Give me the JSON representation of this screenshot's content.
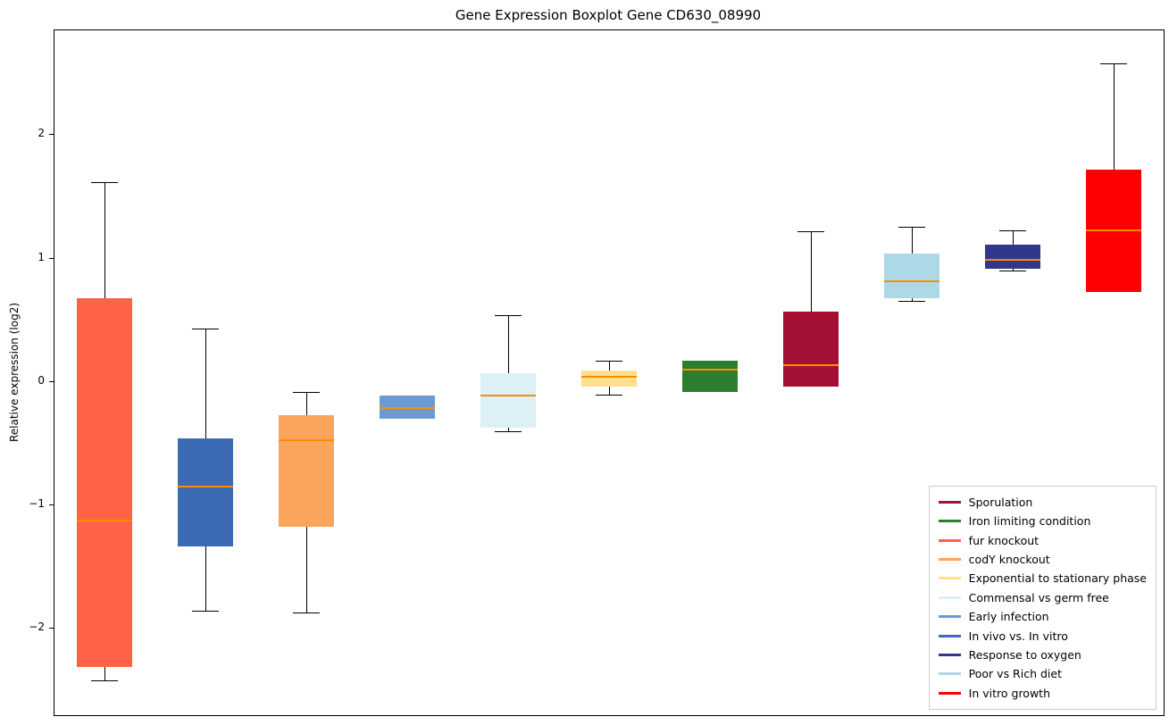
{
  "title": "Gene Expression Boxplot Gene CD630_08990",
  "ylabel": "Relative expression (log2)",
  "chart_data": {
    "type": "boxplot",
    "title": "Gene Expression Boxplot Gene CD630_08990",
    "xlabel": "",
    "ylabel": "Relative expression (log2)",
    "ylim": [
      -2.7,
      2.85
    ],
    "yticks": [
      -2,
      -1,
      0,
      1,
      2
    ],
    "grid": false,
    "median_color": "#FF8C00",
    "whisker_color": "#000000",
    "legend_position": "lower right",
    "boxes": [
      {
        "label": "fur knockout",
        "color": "#FF6347",
        "whislo": -2.42,
        "q1": -2.31,
        "med": -1.12,
        "q3": 0.68,
        "whishi": 1.62
      },
      {
        "label": "In vivo vs. In vitro",
        "color": "#3D6BB3",
        "whislo": -1.85,
        "q1": -1.33,
        "med": -0.85,
        "q3": -0.46,
        "whishi": 0.43
      },
      {
        "label": "codY knockout",
        "color": "#FBA55C",
        "whislo": -1.87,
        "q1": -1.17,
        "med": -0.47,
        "q3": -0.27,
        "whishi": -0.08
      },
      {
        "label": "Early infection",
        "color": "#6C9BD2",
        "whislo": -0.3,
        "q1": -0.3,
        "med": -0.21,
        "q3": -0.11,
        "whishi": -0.11
      },
      {
        "label": "Commensal vs germ free",
        "color": "#DDF0F6",
        "whislo": -0.4,
        "q1": -0.37,
        "med": -0.11,
        "q3": 0.07,
        "whishi": 0.54
      },
      {
        "label": "Exponential to stationary phase",
        "color": "#FFE08F",
        "whislo": -0.1,
        "q1": -0.04,
        "med": 0.04,
        "q3": 0.09,
        "whishi": 0.17
      },
      {
        "label": "Iron limiting condition",
        "color": "#2A7E2E",
        "whislo": -0.08,
        "q1": -0.08,
        "med": 0.1,
        "q3": 0.17,
        "whishi": 0.17
      },
      {
        "label": "Sporulation",
        "color": "#A41034",
        "whislo": -0.04,
        "q1": -0.04,
        "med": 0.14,
        "q3": 0.57,
        "whishi": 1.22
      },
      {
        "label": "Poor vs Rich diet",
        "color": "#ADD8E6",
        "whislo": 0.66,
        "q1": 0.68,
        "med": 0.82,
        "q3": 1.04,
        "whishi": 1.26
      },
      {
        "label": "Response to oxygen",
        "color": "#333789",
        "whislo": 0.9,
        "q1": 0.92,
        "med": 0.99,
        "q3": 1.11,
        "whishi": 1.23
      },
      {
        "label": "In vitro growth",
        "color": "#FE0000",
        "whislo": 0.73,
        "q1": 0.73,
        "med": 1.23,
        "q3": 1.72,
        "whishi": 2.58
      }
    ],
    "legend_entries": [
      {
        "label": "Sporulation",
        "color": "#A41034"
      },
      {
        "label": "Iron limiting condition",
        "color": "#2A7E2E"
      },
      {
        "label": "fur knockout",
        "color": "#FF6347"
      },
      {
        "label": "codY knockout",
        "color": "#FBA55C"
      },
      {
        "label": "Exponential to stationary phase",
        "color": "#FFE08F"
      },
      {
        "label": "Commensal vs germ free",
        "color": "#DDF0F6"
      },
      {
        "label": "Early infection",
        "color": "#6C9BD2"
      },
      {
        "label": "In vivo vs. In vitro",
        "color": "#3D6BB3"
      },
      {
        "label": "Response to oxygen",
        "color": "#333789"
      },
      {
        "label": "Poor vs Rich diet",
        "color": "#ADD8E6"
      },
      {
        "label": "In vitro growth",
        "color": "#FE0000"
      }
    ]
  }
}
